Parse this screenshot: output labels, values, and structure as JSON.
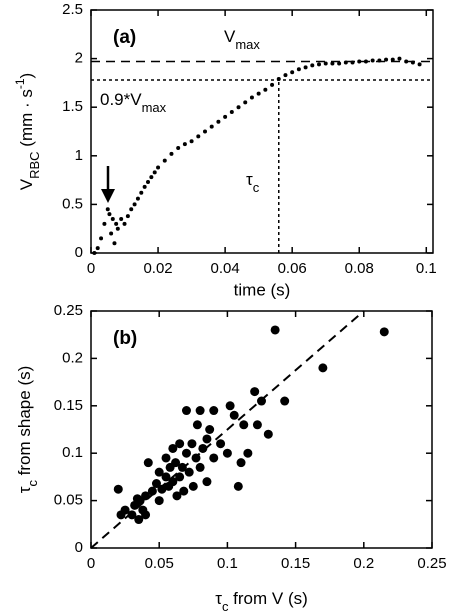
{
  "chart_data": [
    {
      "type": "scatter",
      "label": "(a)",
      "xlabel": "time (s)",
      "ylabel": {
        "text": "V",
        "sub": "RBC",
        "text2": " (mm · s",
        "sup": "-1",
        "text3": ")"
      },
      "vmax_label": {
        "text": "V",
        "sub": "max"
      },
      "v90_label": {
        "text": "0.9*V",
        "sub": "max"
      },
      "tau_label": {
        "text": "τ",
        "sub": "c"
      },
      "vmax": 1.97,
      "v90": 1.78,
      "tau_c": 0.056,
      "xlim": [
        0,
        0.102
      ],
      "ylim": [
        0,
        2.5
      ],
      "xticks": [
        0,
        0.02,
        0.04,
        0.06,
        0.08,
        0.1
      ],
      "yticks": [
        0,
        0.5,
        1,
        1.5,
        2,
        2.5
      ],
      "color": "#000000",
      "x": [
        0.001,
        0.002,
        0.003,
        0.004,
        0.005,
        0.0055,
        0.006,
        0.0065,
        0.007,
        0.0075,
        0.008,
        0.009,
        0.01,
        0.011,
        0.012,
        0.013,
        0.014,
        0.015,
        0.016,
        0.017,
        0.018,
        0.019,
        0.02,
        0.022,
        0.024,
        0.026,
        0.028,
        0.03,
        0.032,
        0.034,
        0.036,
        0.038,
        0.04,
        0.042,
        0.044,
        0.046,
        0.048,
        0.05,
        0.052,
        0.054,
        0.056,
        0.058,
        0.06,
        0.062,
        0.064,
        0.066,
        0.068,
        0.07,
        0.072,
        0.074,
        0.076,
        0.078,
        0.08,
        0.082,
        0.084,
        0.086,
        0.088,
        0.09,
        0.092,
        0.094,
        0.096,
        0.098
      ],
      "values": [
        0,
        0.05,
        0.15,
        0.3,
        0.45,
        0.4,
        0.2,
        0.35,
        0.1,
        0.3,
        0.25,
        0.35,
        0.3,
        0.38,
        0.45,
        0.5,
        0.56,
        0.62,
        0.68,
        0.73,
        0.78,
        0.83,
        0.88,
        0.95,
        1.02,
        1.08,
        1.12,
        1.15,
        1.2,
        1.25,
        1.3,
        1.35,
        1.4,
        1.45,
        1.5,
        1.55,
        1.6,
        1.64,
        1.68,
        1.73,
        1.79,
        1.83,
        1.86,
        1.89,
        1.91,
        1.93,
        1.94,
        1.95,
        1.95,
        1.95,
        1.96,
        1.96,
        1.97,
        1.97,
        1.98,
        1.98,
        1.99,
        1.99,
        2.0,
        1.97,
        1.96,
        1.94
      ]
    },
    {
      "type": "scatter",
      "label": "(b)",
      "xlabel": {
        "text": "τ",
        "sub": "c",
        "text2": " from V (s)"
      },
      "ylabel": {
        "text": "τ",
        "sub": "c",
        "text2": " from shape (s)"
      },
      "fit_line": {
        "x": [
          0,
          0.2
        ],
        "y": [
          0,
          0.25
        ]
      },
      "xlim": [
        0,
        0.25
      ],
      "ylim": [
        0,
        0.25
      ],
      "xticks": [
        0,
        0.05,
        0.1,
        0.15,
        0.2,
        0.25
      ],
      "yticks": [
        0,
        0.05,
        0.1,
        0.15,
        0.2,
        0.25
      ],
      "color": "#000000",
      "x": [
        0.02,
        0.022,
        0.025,
        0.03,
        0.032,
        0.034,
        0.035,
        0.036,
        0.038,
        0.04,
        0.04,
        0.042,
        0.045,
        0.048,
        0.05,
        0.05,
        0.052,
        0.055,
        0.055,
        0.057,
        0.058,
        0.06,
        0.06,
        0.062,
        0.063,
        0.065,
        0.065,
        0.067,
        0.068,
        0.07,
        0.07,
        0.072,
        0.074,
        0.075,
        0.077,
        0.078,
        0.08,
        0.08,
        0.082,
        0.085,
        0.085,
        0.087,
        0.09,
        0.09,
        0.095,
        0.1,
        0.102,
        0.105,
        0.108,
        0.11,
        0.112,
        0.115,
        0.12,
        0.122,
        0.125,
        0.13,
        0.135,
        0.142,
        0.17,
        0.215
      ],
      "values": [
        0.062,
        0.035,
        0.04,
        0.035,
        0.045,
        0.052,
        0.03,
        0.05,
        0.04,
        0.055,
        0.035,
        0.09,
        0.06,
        0.068,
        0.05,
        0.08,
        0.062,
        0.075,
        0.095,
        0.065,
        0.085,
        0.07,
        0.105,
        0.09,
        0.055,
        0.075,
        0.11,
        0.085,
        0.06,
        0.1,
        0.145,
        0.08,
        0.11,
        0.065,
        0.095,
        0.13,
        0.085,
        0.145,
        0.105,
        0.07,
        0.115,
        0.125,
        0.095,
        0.145,
        0.11,
        0.1,
        0.15,
        0.14,
        0.065,
        0.09,
        0.13,
        0.1,
        0.165,
        0.13,
        0.155,
        0.12,
        0.23,
        0.155,
        0.19,
        0.228
      ]
    }
  ]
}
